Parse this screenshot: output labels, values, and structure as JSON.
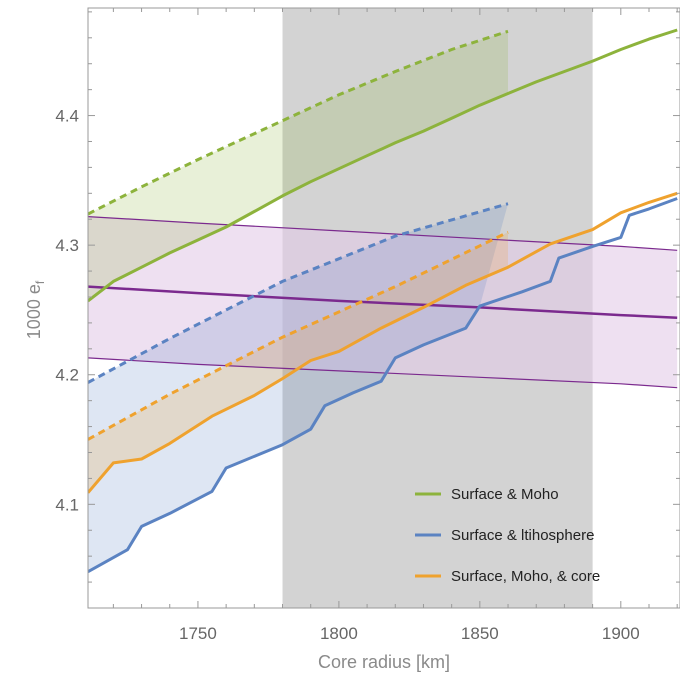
{
  "chart_data": {
    "type": "line",
    "xlabel": "Core radius [km]",
    "ylabel": "1000 e",
    "ylabel_subscript": "f",
    "xlim": [
      1711,
      1921
    ],
    "ylim": [
      4.02,
      4.483
    ],
    "x_ticks": [
      1750,
      1800,
      1850,
      1900
    ],
    "y_ticks": [
      4.1,
      4.2,
      4.3,
      4.4
    ],
    "x_tick_labels": [
      "1750",
      "1800",
      "1850",
      "1900"
    ],
    "y_tick_labels": [
      "4.1",
      "4.2",
      "4.3",
      "4.4"
    ],
    "grid": false,
    "legend_position": "bottom-right",
    "shaded_region": {
      "x_from": 1780,
      "x_to": 1890,
      "color": "#d3d3d3"
    },
    "colors": {
      "green": "#8db33c",
      "blue": "#5b83c2",
      "orange": "#efa22e",
      "purple": "#7b2a8e",
      "purple_fill": "#e2cbe7",
      "shade": "#d3d3d3",
      "axis": "#999999"
    },
    "series": [
      {
        "name": "Surface & Moho",
        "color": "#8db33c",
        "solid": [
          [
            1711,
            4.257
          ],
          [
            1720,
            4.272
          ],
          [
            1730,
            4.283
          ],
          [
            1740,
            4.294
          ],
          [
            1750,
            4.304
          ],
          [
            1760,
            4.314
          ],
          [
            1770,
            4.326
          ],
          [
            1780,
            4.338
          ],
          [
            1790,
            4.349
          ],
          [
            1800,
            4.359
          ],
          [
            1810,
            4.369
          ],
          [
            1820,
            4.379
          ],
          [
            1830,
            4.388
          ],
          [
            1840,
            4.398
          ],
          [
            1850,
            4.408
          ],
          [
            1860,
            4.417
          ],
          [
            1870,
            4.426
          ],
          [
            1880,
            4.434
          ],
          [
            1890,
            4.442
          ],
          [
            1900,
            4.451
          ],
          [
            1910,
            4.459
          ],
          [
            1920,
            4.466
          ]
        ],
        "dashed": [
          [
            1711,
            4.324
          ],
          [
            1730,
            4.345
          ],
          [
            1750,
            4.366
          ],
          [
            1780,
            4.396
          ],
          [
            1800,
            4.416
          ],
          [
            1820,
            4.434
          ],
          [
            1840,
            4.451
          ],
          [
            1860,
            4.465
          ]
        ]
      },
      {
        "name": "Surface & ltihosphere",
        "color": "#5b83c2",
        "solid": [
          [
            1711,
            4.048
          ],
          [
            1725,
            4.065
          ],
          [
            1730,
            4.083
          ],
          [
            1740,
            4.093
          ],
          [
            1755,
            4.11
          ],
          [
            1760,
            4.128
          ],
          [
            1780,
            4.146
          ],
          [
            1790,
            4.158
          ],
          [
            1795,
            4.176
          ],
          [
            1805,
            4.186
          ],
          [
            1815,
            4.195
          ],
          [
            1820,
            4.213
          ],
          [
            1830,
            4.223
          ],
          [
            1845,
            4.236
          ],
          [
            1850,
            4.253
          ],
          [
            1865,
            4.264
          ],
          [
            1875,
            4.272
          ],
          [
            1878,
            4.29
          ],
          [
            1890,
            4.299
          ],
          [
            1900,
            4.306
          ],
          [
            1903,
            4.323
          ],
          [
            1910,
            4.328
          ],
          [
            1920,
            4.336
          ]
        ],
        "dashed": [
          [
            1711,
            4.194
          ],
          [
            1740,
            4.228
          ],
          [
            1780,
            4.272
          ],
          [
            1820,
            4.307
          ],
          [
            1860,
            4.332
          ]
        ]
      },
      {
        "name": "Surface, Moho, & core",
        "color": "#efa22e",
        "solid": [
          [
            1711,
            4.109
          ],
          [
            1720,
            4.132
          ],
          [
            1730,
            4.135
          ],
          [
            1740,
            4.147
          ],
          [
            1755,
            4.168
          ],
          [
            1770,
            4.184
          ],
          [
            1780,
            4.197
          ],
          [
            1790,
            4.211
          ],
          [
            1800,
            4.218
          ],
          [
            1815,
            4.236
          ],
          [
            1830,
            4.252
          ],
          [
            1845,
            4.269
          ],
          [
            1860,
            4.283
          ],
          [
            1875,
            4.301
          ],
          [
            1890,
            4.312
          ],
          [
            1900,
            4.325
          ],
          [
            1910,
            4.333
          ],
          [
            1920,
            4.34
          ]
        ],
        "dashed": [
          [
            1711,
            4.15
          ],
          [
            1740,
            4.185
          ],
          [
            1780,
            4.229
          ],
          [
            1820,
            4.268
          ],
          [
            1860,
            4.31
          ]
        ]
      },
      {
        "name": "",
        "color": "#7b2a8e",
        "center": [
          [
            1711,
            4.268
          ],
          [
            1750,
            4.263
          ],
          [
            1800,
            4.257
          ],
          [
            1850,
            4.252
          ],
          [
            1900,
            4.246
          ],
          [
            1920,
            4.244
          ]
        ],
        "upper": [
          [
            1711,
            4.322
          ],
          [
            1750,
            4.317
          ],
          [
            1800,
            4.311
          ],
          [
            1850,
            4.305
          ],
          [
            1900,
            4.299
          ],
          [
            1920,
            4.296
          ]
        ],
        "lower": [
          [
            1711,
            4.213
          ],
          [
            1750,
            4.208
          ],
          [
            1800,
            4.203
          ],
          [
            1850,
            4.198
          ],
          [
            1900,
            4.193
          ],
          [
            1920,
            4.19
          ]
        ]
      }
    ]
  }
}
